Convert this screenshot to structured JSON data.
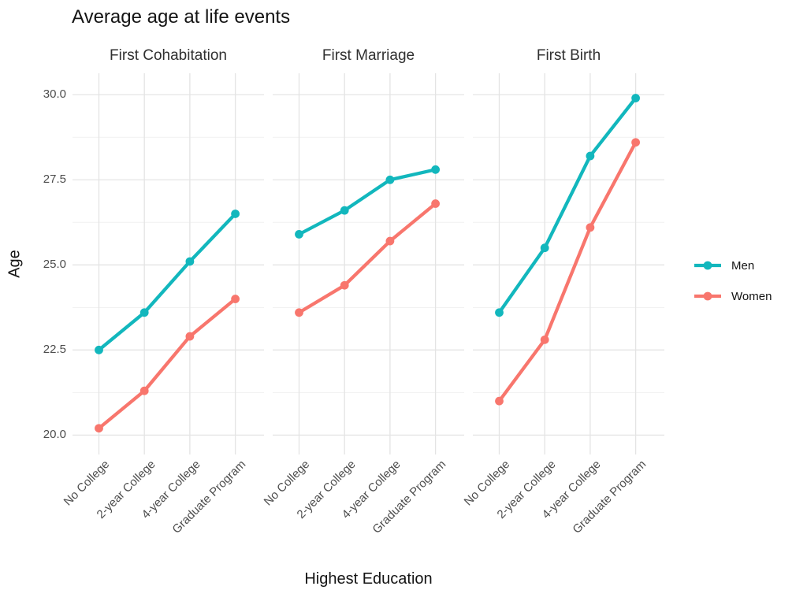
{
  "chart_data": {
    "type": "line",
    "faceted": true,
    "title": "Average age at life events",
    "xlabel": "Highest Education",
    "ylabel": "Age",
    "categories": [
      "No College",
      "2-year College",
      "4-year College",
      "Graduate Program"
    ],
    "ylim": [
      19.43,
      30.63
    ],
    "y_major_ticks": [
      20.0,
      22.5,
      25.0,
      27.5,
      30.0
    ],
    "y_minor_ticks": [
      21.25,
      23.75,
      26.25,
      28.75
    ],
    "grid": true,
    "legend_position": "right",
    "facets": [
      {
        "label": "First Cohabitation",
        "series": [
          {
            "name": "Men",
            "values": [
              22.5,
              23.6,
              25.1,
              26.5
            ]
          },
          {
            "name": "Women",
            "values": [
              20.2,
              21.3,
              22.9,
              24.0
            ]
          }
        ]
      },
      {
        "label": "First Marriage",
        "series": [
          {
            "name": "Men",
            "values": [
              25.9,
              26.6,
              27.5,
              27.8
            ]
          },
          {
            "name": "Women",
            "values": [
              23.6,
              24.4,
              25.7,
              26.8
            ]
          }
        ]
      },
      {
        "label": "First Birth",
        "series": [
          {
            "name": "Men",
            "values": [
              23.6,
              25.5,
              28.2,
              29.9
            ]
          },
          {
            "name": "Women",
            "values": [
              21.0,
              22.8,
              26.1,
              28.6
            ]
          }
        ]
      }
    ]
  },
  "colors": {
    "men": "#12b7bd",
    "women": "#f8766d",
    "grid_major": "#e4e4e4",
    "grid_minor": "#f1f1f1",
    "tick_text": "#4d4d4d",
    "title_text": "#141414"
  }
}
